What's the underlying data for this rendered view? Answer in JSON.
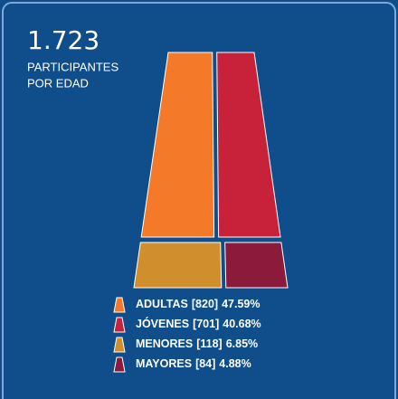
{
  "chart_data": {
    "type": "skirt",
    "title": "1.723",
    "subtitle": [
      "PARTICIPANTES",
      "POR EDAD"
    ],
    "categories": [
      "ADULTAS",
      "JÓVENES",
      "MENORES",
      "MAYORES"
    ],
    "values": [
      820,
      701,
      118,
      84
    ],
    "value_labels": [
      "[820]",
      "[701]",
      "[118]",
      "[84]"
    ],
    "percents": [
      47.59,
      40.68,
      6.85,
      4.88
    ],
    "percent_labels": [
      "47.59%",
      "40.68%",
      "6.85%",
      "4.88%"
    ],
    "colors": [
      "#f47a2a",
      "#c8213a",
      "#d08e2c",
      "#8c1a3a"
    ]
  }
}
